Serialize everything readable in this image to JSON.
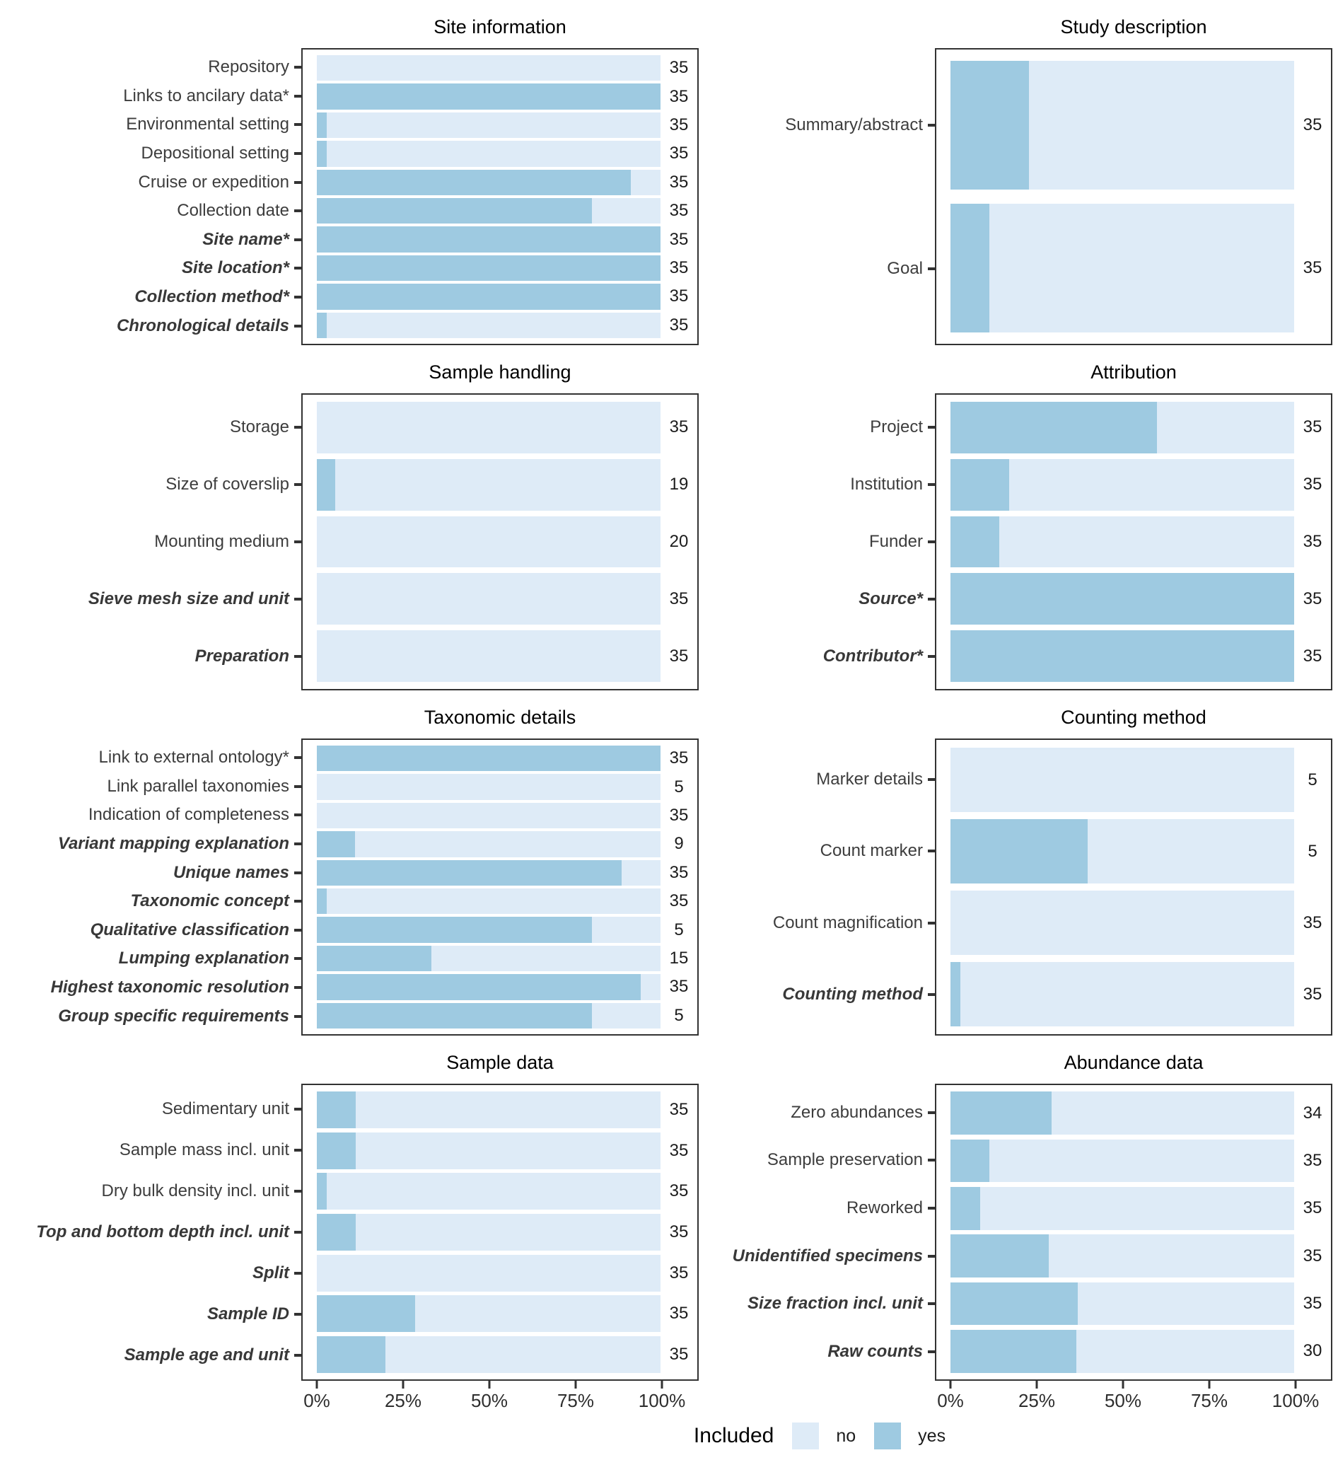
{
  "chart_data": {
    "type": "bar",
    "orientation": "horizontal",
    "stacked": true,
    "unit": "percent of studies",
    "xlim": [
      0,
      100
    ],
    "grid": false,
    "colors": {
      "no": "#DEEBF7",
      "yes": "#9ECAE1"
    },
    "x_axis": {
      "ticks": [
        "0%",
        "25%",
        "50%",
        "75%",
        "100%"
      ],
      "values": [
        0,
        25,
        50,
        75,
        100
      ]
    },
    "legend": {
      "title": "Included",
      "items": [
        {
          "label": "no",
          "color_key": "no"
        },
        {
          "label": "yes",
          "color_key": "yes"
        }
      ],
      "position": "bottom"
    },
    "panels": [
      {
        "title": "Site information",
        "items": [
          {
            "label": "Repository",
            "emphasis": false,
            "yes_pct": 0,
            "count": 35
          },
          {
            "label": "Links to ancilary data*",
            "emphasis": false,
            "yes_pct": 100,
            "count": 35
          },
          {
            "label": "Environmental setting",
            "emphasis": false,
            "yes_pct": 2.9,
            "count": 35
          },
          {
            "label": "Depositional setting",
            "emphasis": false,
            "yes_pct": 2.9,
            "count": 35
          },
          {
            "label": "Cruise or expedition",
            "emphasis": false,
            "yes_pct": 91.4,
            "count": 35
          },
          {
            "label": "Collection date",
            "emphasis": false,
            "yes_pct": 80,
            "count": 35
          },
          {
            "label": "Site name*",
            "emphasis": true,
            "yes_pct": 100,
            "count": 35
          },
          {
            "label": "Site location*",
            "emphasis": true,
            "yes_pct": 100,
            "count": 35
          },
          {
            "label": "Collection method*",
            "emphasis": true,
            "yes_pct": 100,
            "count": 35
          },
          {
            "label": "Chronological details",
            "emphasis": true,
            "yes_pct": 2.9,
            "count": 35
          }
        ]
      },
      {
        "title": "Study description",
        "items": [
          {
            "label": "Summary/abstract",
            "emphasis": false,
            "yes_pct": 22.9,
            "count": 35
          },
          {
            "label": "Goal",
            "emphasis": false,
            "yes_pct": 11.4,
            "count": 35
          }
        ]
      },
      {
        "title": "Sample handling",
        "items": [
          {
            "label": "Storage",
            "emphasis": false,
            "yes_pct": 0,
            "count": 35
          },
          {
            "label": "Size of coverslip",
            "emphasis": false,
            "yes_pct": 5.3,
            "count": 19
          },
          {
            "label": "Mounting medium",
            "emphasis": false,
            "yes_pct": 0,
            "count": 20
          },
          {
            "label": "Sieve mesh size and unit",
            "emphasis": true,
            "yes_pct": 0,
            "count": 35
          },
          {
            "label": "Preparation",
            "emphasis": true,
            "yes_pct": 0,
            "count": 35
          }
        ]
      },
      {
        "title": "Attribution",
        "items": [
          {
            "label": "Project",
            "emphasis": false,
            "yes_pct": 60,
            "count": 35
          },
          {
            "label": "Institution",
            "emphasis": false,
            "yes_pct": 17.1,
            "count": 35
          },
          {
            "label": "Funder",
            "emphasis": false,
            "yes_pct": 14.3,
            "count": 35
          },
          {
            "label": "Source*",
            "emphasis": true,
            "yes_pct": 100,
            "count": 35
          },
          {
            "label": "Contributor*",
            "emphasis": true,
            "yes_pct": 100,
            "count": 35
          }
        ]
      },
      {
        "title": "Taxonomic details",
        "items": [
          {
            "label": "Link to external ontology*",
            "emphasis": false,
            "yes_pct": 100,
            "count": 35
          },
          {
            "label": "Link parallel taxonomies",
            "emphasis": false,
            "yes_pct": 0,
            "count": 5
          },
          {
            "label": "Indication of completeness",
            "emphasis": false,
            "yes_pct": 0,
            "count": 35
          },
          {
            "label": "Variant mapping explanation",
            "emphasis": true,
            "yes_pct": 11.1,
            "count": 9
          },
          {
            "label": "Unique names",
            "emphasis": true,
            "yes_pct": 88.6,
            "count": 35
          },
          {
            "label": "Taxonomic concept",
            "emphasis": true,
            "yes_pct": 2.9,
            "count": 35
          },
          {
            "label": "Qualitative classification",
            "emphasis": true,
            "yes_pct": 80,
            "count": 5
          },
          {
            "label": "Lumping explanation",
            "emphasis": true,
            "yes_pct": 33.3,
            "count": 15
          },
          {
            "label": "Highest taxonomic resolution",
            "emphasis": true,
            "yes_pct": 94.3,
            "count": 35
          },
          {
            "label": "Group specific requirements",
            "emphasis": true,
            "yes_pct": 80,
            "count": 5
          }
        ]
      },
      {
        "title": "Counting method",
        "items": [
          {
            "label": "Marker details",
            "emphasis": false,
            "yes_pct": 0,
            "count": 5
          },
          {
            "label": "Count marker",
            "emphasis": false,
            "yes_pct": 40,
            "count": 5
          },
          {
            "label": "Count magnification",
            "emphasis": false,
            "yes_pct": 0,
            "count": 35
          },
          {
            "label": "Counting method",
            "emphasis": true,
            "yes_pct": 2.9,
            "count": 35
          }
        ]
      },
      {
        "title": "Sample data",
        "items": [
          {
            "label": "Sedimentary unit",
            "emphasis": false,
            "yes_pct": 11.4,
            "count": 35
          },
          {
            "label": "Sample mass incl. unit",
            "emphasis": false,
            "yes_pct": 11.4,
            "count": 35
          },
          {
            "label": "Dry bulk density incl. unit",
            "emphasis": false,
            "yes_pct": 2.9,
            "count": 35
          },
          {
            "label": "Top and bottom depth incl. unit",
            "emphasis": true,
            "yes_pct": 11.4,
            "count": 35
          },
          {
            "label": "Split",
            "emphasis": true,
            "yes_pct": 0,
            "count": 35
          },
          {
            "label": "Sample ID",
            "emphasis": true,
            "yes_pct": 28.6,
            "count": 35
          },
          {
            "label": "Sample age and unit",
            "emphasis": true,
            "yes_pct": 20,
            "count": 35
          }
        ]
      },
      {
        "title": "Abundance data",
        "items": [
          {
            "label": "Zero abundances",
            "emphasis": false,
            "yes_pct": 29.4,
            "count": 34
          },
          {
            "label": "Sample preservation",
            "emphasis": false,
            "yes_pct": 11.4,
            "count": 35
          },
          {
            "label": "Reworked",
            "emphasis": false,
            "yes_pct": 8.6,
            "count": 35
          },
          {
            "label": "Unidentified specimens",
            "emphasis": true,
            "yes_pct": 28.6,
            "count": 35
          },
          {
            "label": "Size fraction incl. unit",
            "emphasis": true,
            "yes_pct": 37.1,
            "count": 35
          },
          {
            "label": "Raw counts",
            "emphasis": true,
            "yes_pct": 36.7,
            "count": 30
          }
        ]
      }
    ]
  }
}
